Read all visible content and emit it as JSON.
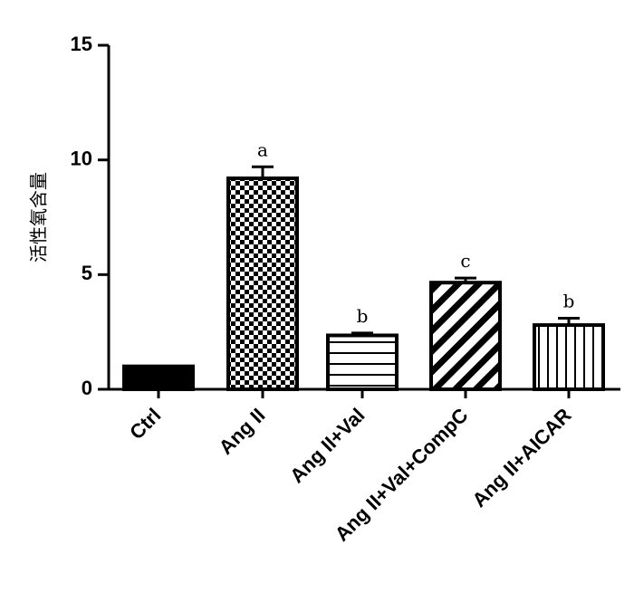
{
  "chart_data": {
    "type": "bar",
    "title": "",
    "xlabel": "",
    "ylabel": "活性氧含量",
    "ylim": [
      0,
      15
    ],
    "yticks": [
      0,
      5,
      10,
      15
    ],
    "categories": [
      "Ctrl",
      "Ang II",
      "Ang II+Val",
      "Ang II+Val+CompC",
      "Ang II+AICAR"
    ],
    "values": [
      1.0,
      9.2,
      2.35,
      4.65,
      2.8
    ],
    "errors": [
      0.0,
      0.5,
      0.1,
      0.2,
      0.3
    ],
    "significance": [
      "",
      "a",
      "b",
      "c",
      "b"
    ],
    "patterns": [
      "solid",
      "checker",
      "horizontal-lines",
      "diagonal-stripes",
      "vertical-lines"
    ],
    "grid": false,
    "legend": "none",
    "colors": {
      "bar_stroke": "#000000",
      "fill": "#000000",
      "background": "#ffffff"
    }
  }
}
